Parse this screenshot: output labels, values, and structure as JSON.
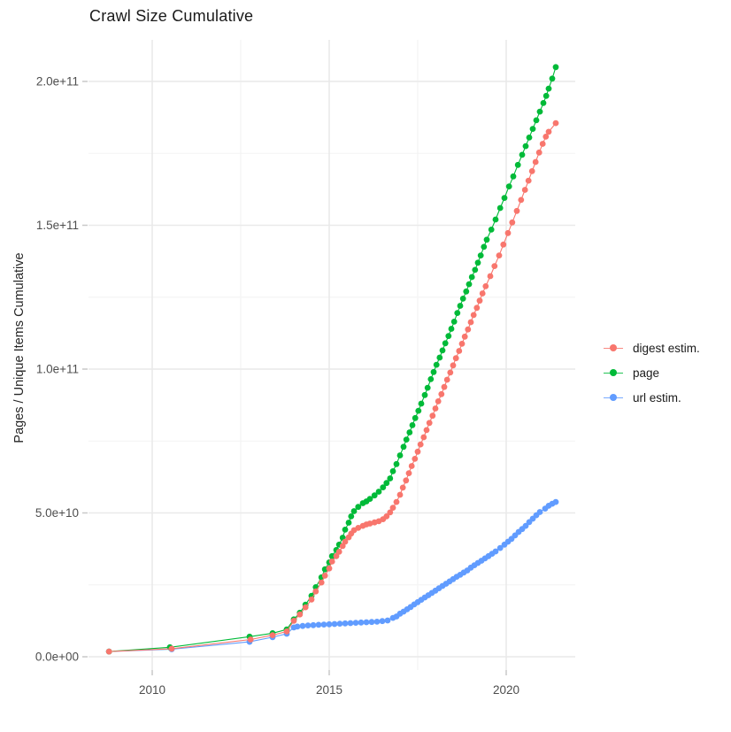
{
  "title": "Crawl Size Cumulative",
  "y_axis": {
    "label": "Pages / Unique Items Cumulative",
    "tick_labels": [
      "0.0e+00",
      "5.0e+10",
      "1.0e+11",
      "1.5e+11",
      "2.0e+11"
    ]
  },
  "x_axis": {
    "tick_labels": [
      "2010",
      "2015",
      "2020"
    ]
  },
  "legend": {
    "position": "right",
    "items": [
      {
        "label": "digest estim.",
        "color": "#F8766D"
      },
      {
        "label": "page",
        "color": "#00BA38"
      },
      {
        "label": "url estim.",
        "color": "#619CFF"
      }
    ]
  },
  "chart_data": {
    "type": "line",
    "title": "Crawl Size Cumulative",
    "xlabel": "",
    "ylabel": "Pages / Unique Items Cumulative",
    "y_unit": "pages, values in billions (1e9)",
    "xlim": [
      2008.2,
      2021.95
    ],
    "ylim": [
      0,
      210000000000.0
    ],
    "grid": true,
    "legend_position": "right",
    "x_ticks": {
      "values": [
        2010,
        2015,
        2020
      ],
      "labels": [
        "2010",
        "2015",
        "2020"
      ]
    },
    "x_minor": [
      2012.5,
      2017.5
    ],
    "y_ticks": {
      "values": [
        0,
        50,
        100,
        150,
        200
      ],
      "labels": [
        "0.0e+00",
        "5.0e+10",
        "1.0e+11",
        "1.5e+11",
        "2.0e+11"
      ]
    },
    "y_minor": [
      25,
      75,
      125,
      175
    ],
    "series": [
      {
        "id": "digest-estim",
        "name": "digest estim.",
        "color": "#F8766D",
        "points": [
          [
            2008.78,
            1.8
          ],
          [
            2010.55,
            2.8
          ],
          [
            2012.78,
            6.0
          ],
          [
            2013.4,
            7.5
          ],
          [
            2013.8,
            8.8
          ],
          [
            2014.0,
            12.5
          ],
          [
            2014.17,
            14.7
          ],
          [
            2014.33,
            17.2
          ],
          [
            2014.5,
            19.9
          ],
          [
            2014.62,
            22.7
          ],
          [
            2014.78,
            25.8
          ],
          [
            2014.88,
            28.2
          ],
          [
            2015.0,
            30.7
          ],
          [
            2015.08,
            33.1
          ],
          [
            2015.2,
            35.0
          ],
          [
            2015.28,
            36.5
          ],
          [
            2015.38,
            38.5
          ],
          [
            2015.45,
            40.0
          ],
          [
            2015.55,
            41.5
          ],
          [
            2015.62,
            42.8
          ],
          [
            2015.7,
            44.0
          ],
          [
            2015.82,
            44.8
          ],
          [
            2015.95,
            45.5
          ],
          [
            2016.05,
            46.0
          ],
          [
            2016.15,
            46.3
          ],
          [
            2016.28,
            46.7
          ],
          [
            2016.4,
            47.1
          ],
          [
            2016.52,
            47.8
          ],
          [
            2016.62,
            48.8
          ],
          [
            2016.72,
            50.2
          ],
          [
            2016.8,
            51.8
          ],
          [
            2016.9,
            53.8
          ],
          [
            2017.0,
            56.3
          ],
          [
            2017.08,
            58.8
          ],
          [
            2017.17,
            61.3
          ],
          [
            2017.25,
            63.8
          ],
          [
            2017.33,
            66.3
          ],
          [
            2017.42,
            68.8
          ],
          [
            2017.5,
            71.3
          ],
          [
            2017.58,
            73.8
          ],
          [
            2017.67,
            76.3
          ],
          [
            2017.75,
            78.8
          ],
          [
            2017.83,
            81.3
          ],
          [
            2017.92,
            83.8
          ],
          [
            2018.0,
            86.3
          ],
          [
            2018.08,
            88.8
          ],
          [
            2018.17,
            91.3
          ],
          [
            2018.25,
            93.8
          ],
          [
            2018.33,
            96.3
          ],
          [
            2018.42,
            98.8
          ],
          [
            2018.5,
            101.3
          ],
          [
            2018.58,
            103.8
          ],
          [
            2018.67,
            106.3
          ],
          [
            2018.75,
            108.8
          ],
          [
            2018.83,
            111.3
          ],
          [
            2018.92,
            113.8
          ],
          [
            2019.0,
            116.3
          ],
          [
            2019.08,
            118.8
          ],
          [
            2019.17,
            121.3
          ],
          [
            2019.25,
            123.8
          ],
          [
            2019.33,
            126.3
          ],
          [
            2019.42,
            128.8
          ],
          [
            2019.55,
            132.3
          ],
          [
            2019.67,
            135.8
          ],
          [
            2019.8,
            139.5
          ],
          [
            2019.92,
            143.3
          ],
          [
            2020.05,
            147.3
          ],
          [
            2020.17,
            151.0
          ],
          [
            2020.3,
            155.0
          ],
          [
            2020.42,
            158.8
          ],
          [
            2020.53,
            162.3
          ],
          [
            2020.63,
            165.5
          ],
          [
            2020.73,
            168.8
          ],
          [
            2020.83,
            172.0
          ],
          [
            2020.93,
            175.3
          ],
          [
            2021.03,
            178.3
          ],
          [
            2021.12,
            180.8
          ],
          [
            2021.2,
            182.5
          ],
          [
            2021.4,
            185.5
          ]
        ]
      },
      {
        "id": "page",
        "name": "page",
        "color": "#00BA38",
        "points": [
          [
            2008.78,
            1.8
          ],
          [
            2010.5,
            3.3
          ],
          [
            2012.75,
            7.0
          ],
          [
            2013.4,
            8.2
          ],
          [
            2013.8,
            9.5
          ],
          [
            2014.0,
            13.0
          ],
          [
            2014.17,
            15.3
          ],
          [
            2014.33,
            18.1
          ],
          [
            2014.5,
            21.2
          ],
          [
            2014.62,
            24.2
          ],
          [
            2014.78,
            27.6
          ],
          [
            2014.88,
            30.4
          ],
          [
            2015.0,
            32.8
          ],
          [
            2015.08,
            35.0
          ],
          [
            2015.2,
            37.1
          ],
          [
            2015.28,
            39.0
          ],
          [
            2015.38,
            41.4
          ],
          [
            2015.45,
            44.2
          ],
          [
            2015.55,
            46.6
          ],
          [
            2015.62,
            48.8
          ],
          [
            2015.7,
            50.6
          ],
          [
            2015.82,
            52.1
          ],
          [
            2015.95,
            53.4
          ],
          [
            2016.05,
            54.0
          ],
          [
            2016.15,
            54.9
          ],
          [
            2016.28,
            56.1
          ],
          [
            2016.4,
            57.4
          ],
          [
            2016.52,
            58.9
          ],
          [
            2016.62,
            60.4
          ],
          [
            2016.72,
            62.0
          ],
          [
            2016.8,
            64.5
          ],
          [
            2016.9,
            67.0
          ],
          [
            2017.0,
            70.0
          ],
          [
            2017.1,
            73.0
          ],
          [
            2017.18,
            75.5
          ],
          [
            2017.27,
            78.0
          ],
          [
            2017.35,
            80.5
          ],
          [
            2017.43,
            83.0
          ],
          [
            2017.52,
            85.5
          ],
          [
            2017.6,
            88.0
          ],
          [
            2017.7,
            91.0
          ],
          [
            2017.78,
            93.5
          ],
          [
            2017.87,
            96.5
          ],
          [
            2017.95,
            99.0
          ],
          [
            2018.03,
            101.5
          ],
          [
            2018.12,
            104.0
          ],
          [
            2018.2,
            106.5
          ],
          [
            2018.28,
            109.0
          ],
          [
            2018.37,
            111.5
          ],
          [
            2018.45,
            114.0
          ],
          [
            2018.53,
            116.5
          ],
          [
            2018.62,
            119.5
          ],
          [
            2018.7,
            122.0
          ],
          [
            2018.78,
            124.5
          ],
          [
            2018.87,
            127.0
          ],
          [
            2018.95,
            129.5
          ],
          [
            2019.03,
            132.0
          ],
          [
            2019.12,
            134.5
          ],
          [
            2019.2,
            137.0
          ],
          [
            2019.28,
            139.5
          ],
          [
            2019.37,
            142.5
          ],
          [
            2019.45,
            145.0
          ],
          [
            2019.58,
            148.5
          ],
          [
            2019.7,
            152.0
          ],
          [
            2019.83,
            156.0
          ],
          [
            2019.95,
            159.5
          ],
          [
            2020.08,
            163.5
          ],
          [
            2020.2,
            167.0
          ],
          [
            2020.33,
            171.0
          ],
          [
            2020.45,
            174.5
          ],
          [
            2020.55,
            177.5
          ],
          [
            2020.65,
            180.5
          ],
          [
            2020.75,
            183.5
          ],
          [
            2020.85,
            186.5
          ],
          [
            2020.95,
            189.5
          ],
          [
            2021.05,
            192.5
          ],
          [
            2021.13,
            195.0
          ],
          [
            2021.2,
            197.5
          ],
          [
            2021.3,
            201.0
          ],
          [
            2021.4,
            205.0
          ]
        ]
      },
      {
        "id": "url-estim",
        "name": "url estim.",
        "color": "#619CFF",
        "points": [
          [
            2008.78,
            1.8
          ],
          [
            2010.55,
            2.6
          ],
          [
            2012.75,
            5.2
          ],
          [
            2013.4,
            6.8
          ],
          [
            2013.8,
            8.0
          ],
          [
            2014.0,
            10.2
          ],
          [
            2014.1,
            10.5
          ],
          [
            2014.25,
            10.7
          ],
          [
            2014.4,
            10.9
          ],
          [
            2014.55,
            11.0
          ],
          [
            2014.7,
            11.1
          ],
          [
            2014.85,
            11.2
          ],
          [
            2015.0,
            11.3
          ],
          [
            2015.15,
            11.4
          ],
          [
            2015.3,
            11.5
          ],
          [
            2015.45,
            11.6
          ],
          [
            2015.6,
            11.7
          ],
          [
            2015.75,
            11.8
          ],
          [
            2015.9,
            11.9
          ],
          [
            2016.05,
            12.0
          ],
          [
            2016.2,
            12.1
          ],
          [
            2016.35,
            12.2
          ],
          [
            2016.5,
            12.4
          ],
          [
            2016.65,
            12.6
          ],
          [
            2016.8,
            13.5
          ],
          [
            2016.9,
            14.0
          ],
          [
            2017.0,
            15.0
          ],
          [
            2017.1,
            15.7
          ],
          [
            2017.2,
            16.5
          ],
          [
            2017.3,
            17.3
          ],
          [
            2017.4,
            18.2
          ],
          [
            2017.5,
            19.0
          ],
          [
            2017.6,
            19.8
          ],
          [
            2017.7,
            20.6
          ],
          [
            2017.8,
            21.4
          ],
          [
            2017.9,
            22.2
          ],
          [
            2018.0,
            23.0
          ],
          [
            2018.1,
            23.8
          ],
          [
            2018.2,
            24.6
          ],
          [
            2018.3,
            25.4
          ],
          [
            2018.4,
            26.2
          ],
          [
            2018.5,
            27.0
          ],
          [
            2018.6,
            27.8
          ],
          [
            2018.7,
            28.5
          ],
          [
            2018.8,
            29.3
          ],
          [
            2018.9,
            30.0
          ],
          [
            2019.0,
            31.0
          ],
          [
            2019.1,
            31.8
          ],
          [
            2019.2,
            32.6
          ],
          [
            2019.3,
            33.4
          ],
          [
            2019.4,
            34.2
          ],
          [
            2019.5,
            35.0
          ],
          [
            2019.6,
            35.8
          ],
          [
            2019.7,
            36.6
          ],
          [
            2019.83,
            37.8
          ],
          [
            2019.95,
            39.0
          ],
          [
            2020.05,
            40.0
          ],
          [
            2020.15,
            41.0
          ],
          [
            2020.25,
            42.2
          ],
          [
            2020.35,
            43.4
          ],
          [
            2020.45,
            44.4
          ],
          [
            2020.55,
            45.5
          ],
          [
            2020.65,
            46.8
          ],
          [
            2020.75,
            48.0
          ],
          [
            2020.85,
            49.2
          ],
          [
            2020.95,
            50.3
          ],
          [
            2021.1,
            51.5
          ],
          [
            2021.2,
            52.5
          ],
          [
            2021.3,
            53.2
          ],
          [
            2021.4,
            53.8
          ]
        ]
      }
    ]
  }
}
